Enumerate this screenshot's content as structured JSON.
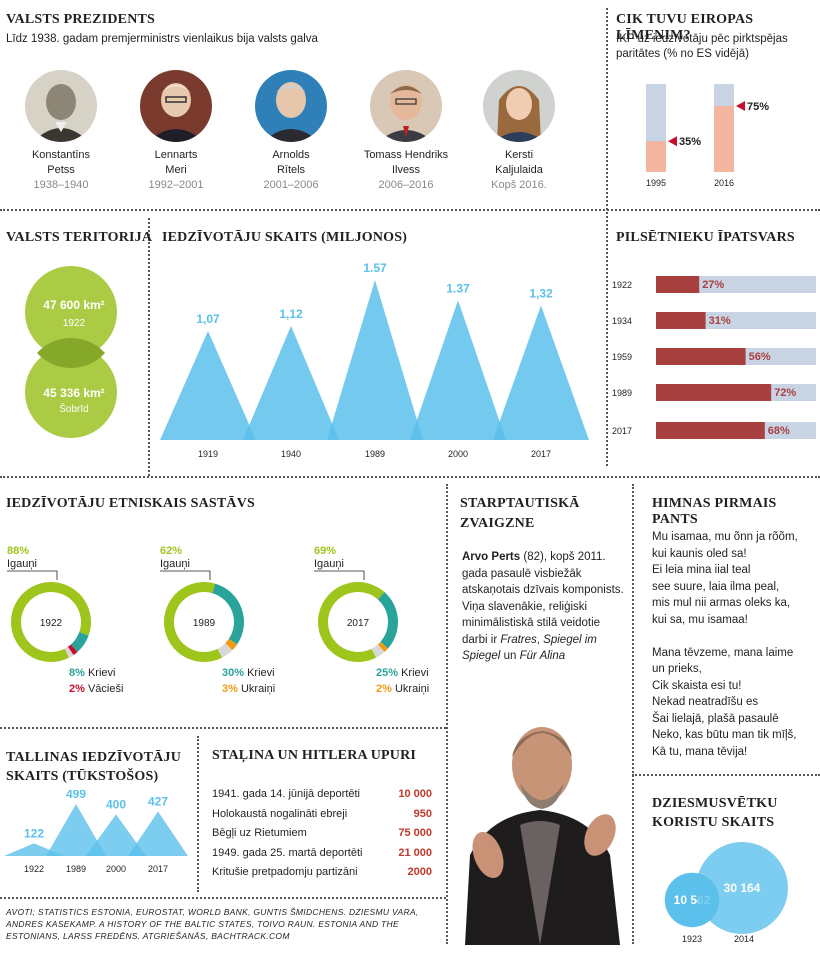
{
  "colors": {
    "accent_blue": "#5bc0eb",
    "green": "#9ec51c",
    "teal": "#2aa39a",
    "red_bar": "#a84040",
    "bar_bg": "#c8d3e3",
    "salmon": "#f4b6a0",
    "orange": "#f39c12",
    "red": "#c8102e"
  },
  "presidents": {
    "title": "VALSTS PREZIDENTS",
    "subtitle": "Līdz 1938. gadam premjerministrs vienlaikus bija valsts galva",
    "items": [
      {
        "name1": "Konstantīns",
        "name2": "Petss",
        "years": "1938–1940",
        "icon": "portrait-photo"
      },
      {
        "name1": "Lennarts",
        "name2": "Meri",
        "years": "1992–2001",
        "icon": "portrait-photo"
      },
      {
        "name1": "Arnolds",
        "name2": "Rītels",
        "years": "2001–2006",
        "icon": "portrait-photo"
      },
      {
        "name1": "Tomass Hendriks",
        "name2": "Ilvess",
        "years": "2006–2016",
        "icon": "portrait-photo"
      },
      {
        "name1": "Kersti",
        "name2": "Kaljulaida",
        "years": "Kopš 2016.",
        "icon": "portrait-photo"
      }
    ]
  },
  "gdp": {
    "title": "CIK TUVU EIROPAS LĪMENIM?",
    "subtitle": "IKP uz iedzīvotāju pēc pirktspējas paritātes (% no ES vidējā)"
  },
  "territory": {
    "title": "VALSTS TERITORIJA",
    "c1_value": "47 600 km²",
    "c1_year": "1922",
    "c2_value": "45 336 km²",
    "c2_year": "Šobrīd"
  },
  "population": {
    "title": "IEDZĪVOTĀJU SKAITS (MILJONOS)"
  },
  "urban": {
    "title": "PILSĒTNIEKU ĪPATSVARS"
  },
  "ethnic": {
    "title": "IEDZĪVOTĀJU ETNISKAIS SASTĀVS",
    "donuts": [
      {
        "year": "1922",
        "top_pct": "88%",
        "top_label": "Igauņi",
        "l1_pct": "8%",
        "l1_label": "Krievi",
        "l2_pct": "2%",
        "l2_label": "Vācieši"
      },
      {
        "year": "1989",
        "top_pct": "62%",
        "top_label": "Igauņi",
        "l1_pct": "30%",
        "l1_label": "Krievi",
        "l2_pct": "3%",
        "l2_label": "Ukraiņi"
      },
      {
        "year": "2017",
        "top_pct": "69%",
        "top_label": "Igauņi",
        "l1_pct": "25%",
        "l1_label": "Krievi",
        "l2_pct": "2%",
        "l2_label": "Ukraiņi"
      }
    ]
  },
  "star": {
    "title1": "STARPTAUTISKĀ",
    "title2": "ZVAIGZNE",
    "name": "Arvo Perts",
    "text1": " (82), kopš 2011. gada pasaulē visbiežāk atskaņotais dzīvais komponists. Viņa slavenākie, reliģiski minimālistiskā stilā veidotie darbi ir ",
    "work1": "Fratres",
    "sep": ", ",
    "work2": "Spiegel im Spiegel",
    "and": " un ",
    "work3": "Für Alina",
    "icon": "composer-photo"
  },
  "anthem": {
    "title": "HIMNAS PIRMAIS PANTS",
    "lines": [
      "Mu isamaa, mu õnn ja rõõm,",
      "kui kaunis oled sa!",
      "Ei leia mina iial teal",
      "see suure, laia ilma peal,",
      "mis mul nii armas oleks ka,",
      "kui sa, mu isamaa!",
      "",
      "Mana tēvzeme, mana laime",
      "un prieks,",
      "Cik skaista esi tu!",
      "Nekad neatradīšu es",
      "Šai lielajā, plašā pasaulē",
      "Neko, kas būtu man tik mīļš,",
      "Kā tu, mana tēvija!"
    ]
  },
  "tallinn": {
    "title1": "TALLINAS IEDZĪVOTĀJU",
    "title2": "SKAITS (TŪKSTOŠOS)"
  },
  "victims": {
    "title": "STAĻINA UN HITLERA UPURI",
    "rows": [
      {
        "label": "1941. gada 14. jūnijā deportēti",
        "value": "10 000"
      },
      {
        "label": "Holokaustā nogalināti ebreji",
        "value": "950"
      },
      {
        "label": "Bēgļi uz Rietumiem",
        "value": "75 000"
      },
      {
        "label": "1949. gada 25. martā deportēti",
        "value": "21 000"
      },
      {
        "label": "Kritušie pretpadomju partizāni",
        "value": "2000"
      }
    ]
  },
  "choir": {
    "title1": "DZIESMUSVĒTKU",
    "title2": "KORISTU SKAITS"
  },
  "sources": "AVOTI; STATISTICS ESTONIA, EUROSTAT, WORLD BANK, GUNTIS ŠMIDCHENS. DZIESMU VARA, ANDRES KASEKAMP. A HISTORY OF THE BALTIC STATES, TOIVO RAUN. ESTONIA AND THE ESTONIANS, LARSS FREDĒNS. ATGRIEŠANĀS, BACHTRACK.COM",
  "chart_data": [
    {
      "id": "gdp",
      "type": "bar",
      "categories": [
        "1995",
        "2016"
      ],
      "values": [
        35,
        75
      ],
      "value_labels": [
        "35%",
        "75%"
      ],
      "ylim": [
        0,
        100
      ]
    },
    {
      "id": "population",
      "type": "area",
      "categories": [
        "1919",
        "1940",
        "1989",
        "2000",
        "2017"
      ],
      "values": [
        1.07,
        1.12,
        1.57,
        1.37,
        1.32
      ],
      "value_labels": [
        "1,07",
        "1,12",
        "1.57",
        "1.37",
        "1,32"
      ]
    },
    {
      "id": "urban",
      "type": "bar",
      "categories": [
        "1922",
        "1934",
        "1959",
        "1989",
        "2017"
      ],
      "values": [
        27,
        31,
        56,
        72,
        68
      ],
      "value_labels": [
        "27%",
        "31%",
        "56%",
        "72%",
        "68%"
      ],
      "ylim": [
        0,
        100
      ]
    },
    {
      "id": "ethnic",
      "type": "pie",
      "series": [
        {
          "year": "1922",
          "values": [
            88,
            8,
            2,
            2
          ]
        },
        {
          "year": "1989",
          "values": [
            62,
            30,
            3,
            5
          ]
        },
        {
          "year": "2017",
          "values": [
            69,
            25,
            2,
            4
          ]
        }
      ]
    },
    {
      "id": "tallinn",
      "type": "area",
      "categories": [
        "1922",
        "1989",
        "2000",
        "2017"
      ],
      "values": [
        122,
        499,
        400,
        427
      ]
    },
    {
      "id": "choir",
      "type": "bubble",
      "categories": [
        "1923",
        "2014"
      ],
      "values": [
        10562,
        30164
      ],
      "value_labels": [
        "10 562",
        "30 164"
      ]
    }
  ]
}
